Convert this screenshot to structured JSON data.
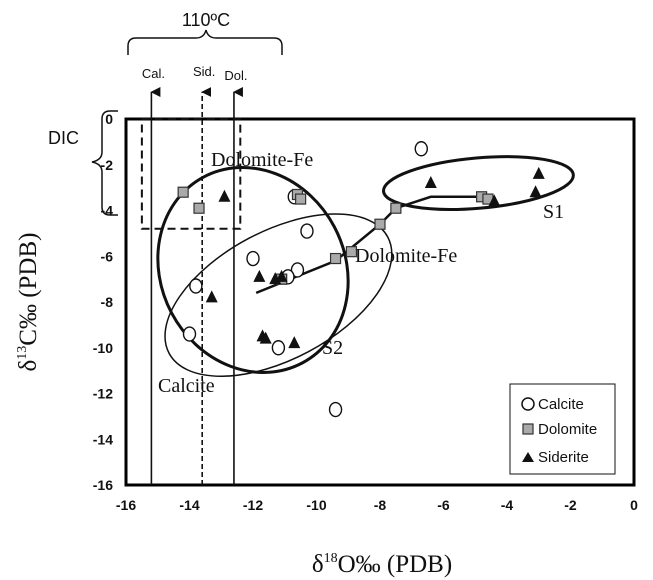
{
  "chart_data": {
    "type": "scatter",
    "xlabel_symbol": "δ",
    "xlabel_sup": "18",
    "xlabel_rest": "O‰ (PDB)",
    "ylabel_symbol": "δ",
    "ylabel_sup": "13",
    "ylabel_rest": "C‰ (PDB)",
    "xlim": [
      -16,
      0
    ],
    "ylim": [
      -16,
      0
    ],
    "xticks": [
      -16,
      -14,
      -12,
      -10,
      -8,
      -6,
      -4,
      -2,
      0
    ],
    "yticks": [
      0,
      -2,
      -4,
      -6,
      -8,
      -10,
      -12,
      -14,
      -16
    ],
    "grid": false,
    "legend_position": "bottom-right",
    "legend": [
      "Calcite",
      "Dolomite",
      "Siderite"
    ],
    "series": [
      {
        "name": "Calcite",
        "marker": "circle",
        "points": [
          [
            -6.7,
            -1.3
          ],
          [
            -10.7,
            -3.4
          ],
          [
            -10.3,
            -4.9
          ],
          [
            -12.0,
            -6.1
          ],
          [
            -10.6,
            -6.6
          ],
          [
            -10.9,
            -6.9
          ],
          [
            -13.8,
            -7.3
          ],
          [
            -14.0,
            -9.4
          ],
          [
            -11.2,
            -10.0
          ],
          [
            -9.4,
            -12.7
          ]
        ]
      },
      {
        "name": "Dolomite",
        "marker": "square",
        "points": [
          [
            -14.2,
            -3.2
          ],
          [
            -13.7,
            -3.9
          ],
          [
            -10.6,
            -3.3
          ],
          [
            -10.5,
            -3.5
          ],
          [
            -8.0,
            -4.6
          ],
          [
            -7.5,
            -3.9
          ],
          [
            -4.8,
            -3.4
          ],
          [
            -4.6,
            -3.5
          ],
          [
            -8.9,
            -5.8
          ],
          [
            -9.4,
            -6.1
          ],
          [
            -11.1,
            -7.0
          ],
          [
            -11.1,
            -7.0
          ]
        ]
      },
      {
        "name": "Siderite",
        "marker": "triangle",
        "points": [
          [
            -12.9,
            -3.4
          ],
          [
            -13.3,
            -7.8
          ],
          [
            -11.8,
            -6.9
          ],
          [
            -11.3,
            -7.0
          ],
          [
            -11.1,
            -6.9
          ],
          [
            -11.7,
            -9.5
          ],
          [
            -11.6,
            -9.6
          ],
          [
            -10.7,
            -9.8
          ],
          [
            -6.4,
            -2.8
          ],
          [
            -4.4,
            -3.6
          ],
          [
            -3.0,
            -2.4
          ],
          [
            -3.1,
            -3.2
          ]
        ]
      }
    ],
    "trend_line": [
      [
        -11.9,
        -7.6
      ],
      [
        -9.4,
        -6.2
      ],
      [
        -8.0,
        -4.6
      ],
      [
        -7.5,
        -3.9
      ],
      [
        -6.4,
        -3.4
      ],
      [
        -4.8,
        -3.4
      ],
      [
        -4.6,
        -3.5
      ]
    ],
    "ellipses": [
      {
        "label": "Dolomite-Fe",
        "cx": -12.0,
        "cy": -6.6,
        "rx": 2.9,
        "ry": 4.6,
        "rotate": -28
      },
      {
        "label": "S2",
        "cx": -11.2,
        "cy": -7.7,
        "rx": 3.9,
        "ry": 2.8,
        "rotate": -28
      },
      {
        "label": "S1",
        "cx": -4.9,
        "cy": -2.8,
        "rx": 3.0,
        "ry": 1.1,
        "rotate": -5
      }
    ],
    "vertical_markers": [
      {
        "label": "Cal.",
        "x": -15.2,
        "style": "solid"
      },
      {
        "label": "Sid.",
        "x": -13.6,
        "style": "dashed"
      },
      {
        "label": "Dol.",
        "x": -12.6,
        "style": "solid"
      }
    ],
    "dic_box": {
      "x0": -15.5,
      "x1": -12.4,
      "y0": 0,
      "y1": -4.8
    },
    "annotations": {
      "temperature": "110ºC",
      "dic": "DIC",
      "dolomite_fe_upper": "Dolomite-Fe",
      "dolomite_fe_lower": "Dolomite-Fe",
      "calcite": "Calcite",
      "s1": "S1",
      "s2": "S2"
    }
  }
}
